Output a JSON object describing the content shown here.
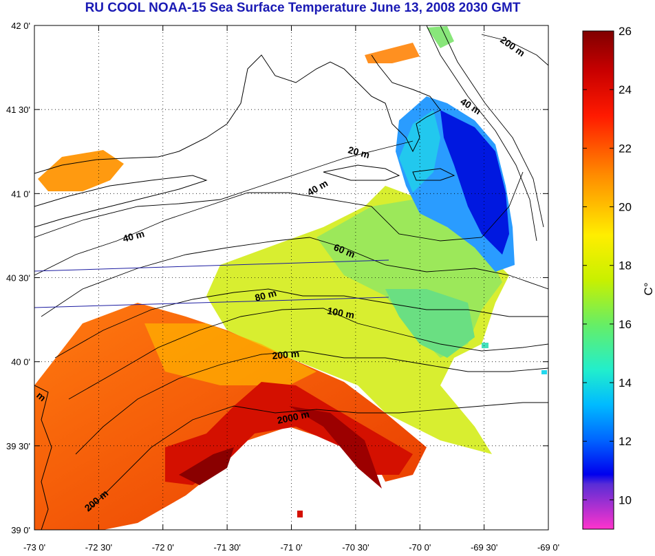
{
  "title": "RU COOL  NOAA-15 Sea Surface Temperature June 13, 2008 2030 GMT",
  "map": {
    "lon_range": [
      -73,
      -69
    ],
    "lat_range": [
      39,
      42
    ],
    "x_ticks": [
      "-73 0'",
      "-72 30'",
      "-72 0'",
      "-71 30'",
      "-71 0'",
      "-70 30'",
      "-70 0'",
      "-69 30'",
      "-69 0'"
    ],
    "y_ticks": [
      "42 0'",
      "41 30'",
      "41 0'",
      "40 30'",
      "40 0'",
      "39 30'",
      "39 0'"
    ],
    "grid": true
  },
  "contour_labels": [
    "200 m",
    "40 m",
    "20 m",
    "40 m",
    "40 m",
    "60 m",
    "80 m",
    "100 m",
    "200 m",
    "2000 m",
    "200 m",
    "m"
  ],
  "colorbar": {
    "unit": "C°",
    "min": 9,
    "max": 26,
    "ticks": [
      "26",
      "24",
      "22",
      "20",
      "18",
      "16",
      "14",
      "12",
      "10"
    ]
  }
}
